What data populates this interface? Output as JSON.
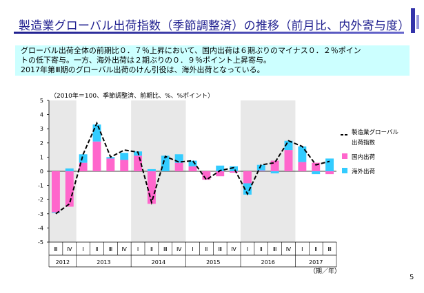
{
  "page": {
    "title": "製造業グローバル出荷指数（季節調整済）の推移（前月比、内外寄与度）",
    "summary_lines": [
      "グローバル出荷全体の前期比０．７％上昇において、国内出荷は６期ぶりのマイナス０．２％ポイン",
      "トの低下寄与。一方、海外出荷は２期ぶりの０．９％ポイント上昇寄与。",
      "2017年第Ⅲ期のグローバル出荷のけん引役は、海外出荷となっている。"
    ],
    "page_number": "5"
  },
  "colors": {
    "domestic": "#ff66cc",
    "overseas": "#33ccff",
    "total_line": "#000000",
    "shade": "#e8e8e8",
    "title": "#1f1f8f",
    "summary_bg": "#ccffff"
  },
  "chart_data": {
    "type": "bar",
    "note": "（2010年＝100、季節調整済、前期比、%、%ポイント）",
    "ylim": [
      -5,
      5
    ],
    "yticks": [
      "5",
      "4",
      "3",
      "2",
      "1",
      "0",
      "-1",
      "-2",
      "-3",
      "-4",
      "-5"
    ],
    "categories": [
      "Ⅲ",
      "Ⅳ",
      "Ⅰ",
      "Ⅱ",
      "Ⅲ",
      "Ⅳ",
      "Ⅰ",
      "Ⅱ",
      "Ⅲ",
      "Ⅳ",
      "Ⅰ",
      "Ⅱ",
      "Ⅲ",
      "Ⅳ",
      "Ⅰ",
      "Ⅱ",
      "Ⅲ",
      "Ⅳ",
      "Ⅰ",
      "Ⅱ",
      "Ⅲ"
    ],
    "years": [
      {
        "label": "2012",
        "start": 0,
        "count": 2,
        "shaded": true
      },
      {
        "label": "2013",
        "start": 2,
        "count": 4,
        "shaded": false
      },
      {
        "label": "2014",
        "start": 6,
        "count": 4,
        "shaded": true
      },
      {
        "label": "2015",
        "start": 10,
        "count": 4,
        "shaded": false
      },
      {
        "label": "2016",
        "start": 14,
        "count": 4,
        "shaded": true
      },
      {
        "label": "2017",
        "start": 18,
        "count": 3,
        "shaded": false
      }
    ],
    "axis_unit_label": "（期／年）",
    "series": [
      {
        "name": "国内出荷",
        "type": "bar",
        "values": [
          -2.9,
          -2.5,
          0.6,
          2.1,
          0.9,
          0.8,
          1.1,
          -2.3,
          0.0,
          0.6,
          0.35,
          -0.6,
          -0.35,
          -0.1,
          -0.85,
          0.05,
          0.75,
          1.5,
          0.65,
          0.6,
          -0.2
        ]
      },
      {
        "name": "海外出荷",
        "type": "bar",
        "values": [
          -0.05,
          0.2,
          0.6,
          1.2,
          0.1,
          0.5,
          0.3,
          0.15,
          1.1,
          0.6,
          0.4,
          0.0,
          0.4,
          0.35,
          -0.8,
          0.4,
          -0.15,
          0.65,
          1.1,
          -0.2,
          0.9
        ]
      },
      {
        "name": "製造業グローバル出荷指数",
        "type": "line",
        "values": [
          -3.0,
          -2.3,
          1.2,
          3.4,
          1.0,
          1.5,
          1.35,
          -2.2,
          1.05,
          0.65,
          0.75,
          -0.6,
          0.05,
          0.25,
          -1.6,
          0.45,
          0.6,
          2.15,
          1.75,
          0.45,
          0.7
        ]
      }
    ]
  }
}
